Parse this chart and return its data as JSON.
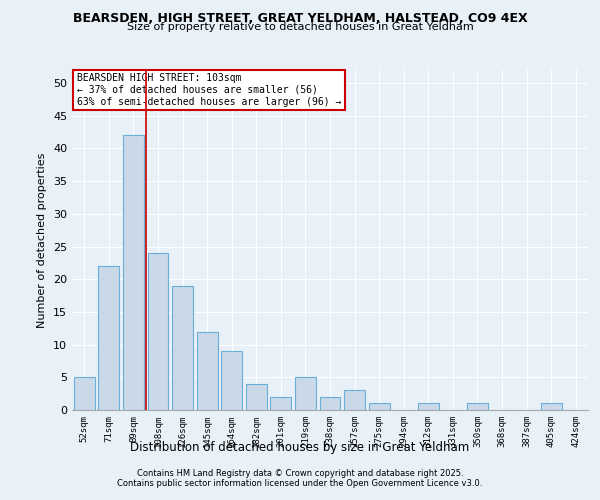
{
  "title1": "BEARSDEN, HIGH STREET, GREAT YELDHAM, HALSTEAD, CO9 4EX",
  "title2": "Size of property relative to detached houses in Great Yeldham",
  "xlabel": "Distribution of detached houses by size in Great Yeldham",
  "ylabel": "Number of detached properties",
  "categories": [
    "52sqm",
    "71sqm",
    "89sqm",
    "108sqm",
    "126sqm",
    "145sqm",
    "164sqm",
    "182sqm",
    "201sqm",
    "219sqm",
    "238sqm",
    "257sqm",
    "275sqm",
    "294sqm",
    "312sqm",
    "331sqm",
    "350sqm",
    "368sqm",
    "387sqm",
    "405sqm",
    "424sqm"
  ],
  "values": [
    5,
    22,
    42,
    24,
    19,
    12,
    9,
    4,
    2,
    5,
    2,
    3,
    1,
    0,
    1,
    0,
    1,
    0,
    0,
    1,
    0
  ],
  "bar_color": "#c9d9e8",
  "bar_edge_color": "#6baed6",
  "annotation_text": "BEARSDEN HIGH STREET: 103sqm\n← 37% of detached houses are smaller (56)\n63% of semi-detached houses are larger (96) →",
  "annotation_box_color": "#ffffff",
  "annotation_box_edge_color": "#cc0000",
  "vline_x": 2.5,
  "vline_color": "#cc0000",
  "background_color": "#e8f0f8",
  "plot_bg_color": "#e8f0f8",
  "ylim": [
    0,
    52
  ],
  "yticks": [
    0,
    5,
    10,
    15,
    20,
    25,
    30,
    35,
    40,
    45,
    50
  ],
  "footer1": "Contains HM Land Registry data © Crown copyright and database right 2025.",
  "footer2": "Contains public sector information licensed under the Open Government Licence v3.0."
}
